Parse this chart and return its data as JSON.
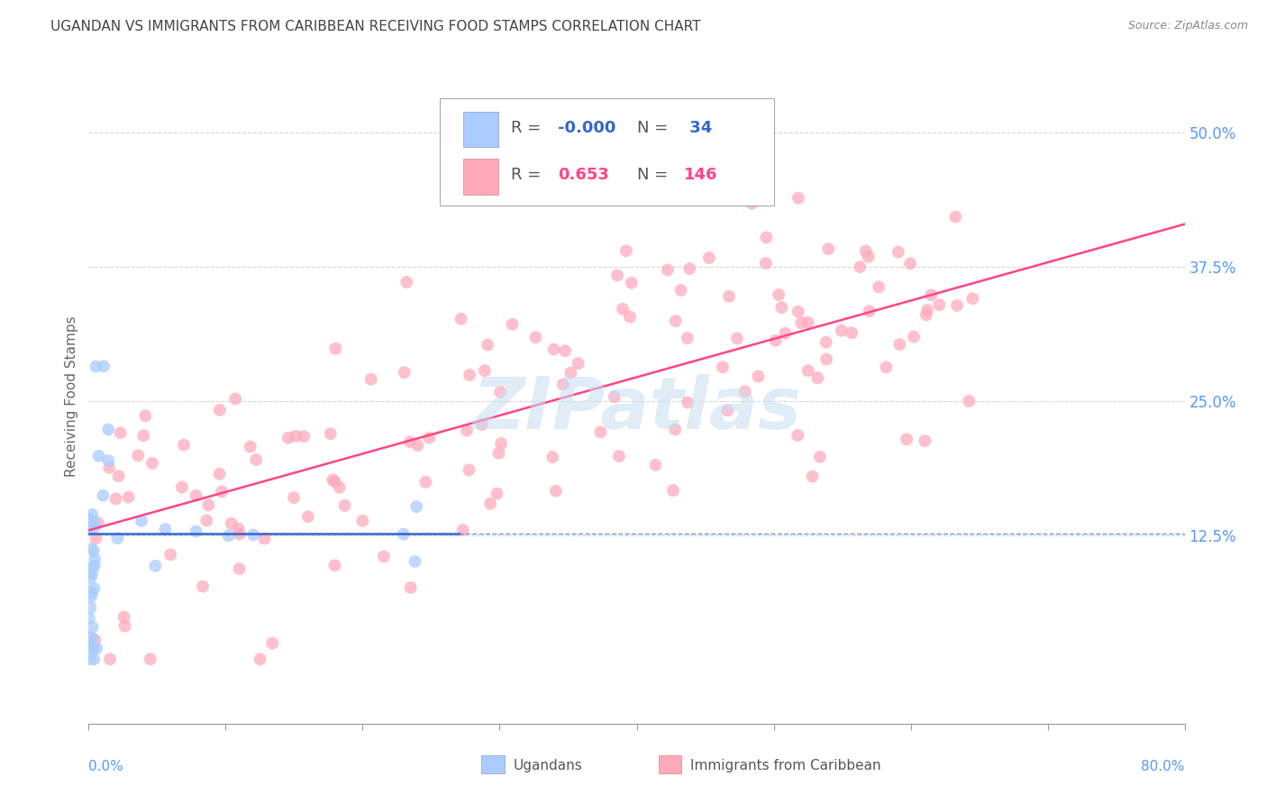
{
  "title": "UGANDAN VS IMMIGRANTS FROM CARIBBEAN RECEIVING FOOD STAMPS CORRELATION CHART",
  "source": "Source: ZipAtlas.com",
  "ylabel": "Receiving Food Stamps",
  "ytick_labels": [
    "12.5%",
    "25.0%",
    "37.5%",
    "50.0%"
  ],
  "ytick_values": [
    0.125,
    0.25,
    0.375,
    0.5
  ],
  "xlim": [
    0.0,
    0.8
  ],
  "ylim": [
    -0.05,
    0.56
  ],
  "watermark": "ZIPatlas",
  "blue_line_solid_end": 0.27,
  "blue_line_y": 0.127,
  "ugandan_color": "#aaccff",
  "caribbean_color": "#ffaabb",
  "ugandan_line_color": "#3366cc",
  "caribbean_line_color": "#ff4488",
  "grid_color": "#cccccc",
  "background_color": "#ffffff",
  "title_color": "#444444",
  "right_axis_color": "#5599ff",
  "carib_line_x0": 0.0,
  "carib_line_y0": 0.13,
  "carib_line_x1": 0.8,
  "carib_line_y1": 0.415
}
